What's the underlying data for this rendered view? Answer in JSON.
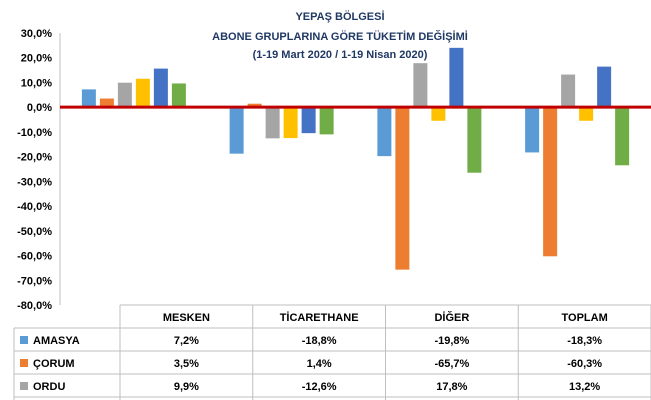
{
  "chart_data": {
    "type": "bar",
    "title_lines": [
      "YEPAŞ BÖLGESİ",
      "ABONE GRUPLARINA GÖRE TÜKETİM DEĞİŞİMİ",
      "(1-19 Mart 2020 / 1-19 Nisan 2020)"
    ],
    "categories": [
      "MESKEN",
      "TİCARETHANE",
      "DİĞER",
      "TOPLAM"
    ],
    "ylim": [
      -80,
      30
    ],
    "yticks": [
      "30,0%",
      "20,0%",
      "10,0%",
      "0,0%",
      "-10,0%",
      "-20,0%",
      "-30,0%",
      "-40,0%",
      "-50,0%",
      "-60,0%",
      "-70,0%",
      "-80,0%"
    ],
    "series": [
      {
        "name": "AMASYA",
        "color": "#5b9bd5",
        "values": [
          7.2,
          -18.8,
          -19.8,
          -18.3
        ],
        "labels": [
          "7,2%",
          "-18,8%",
          "-19,8%",
          "-18,3%"
        ]
      },
      {
        "name": "ÇORUM",
        "color": "#ed7d31",
        "values": [
          3.5,
          1.4,
          -65.7,
          -60.3
        ],
        "labels": [
          "3,5%",
          "1,4%",
          "-65,7%",
          "-60,3%"
        ]
      },
      {
        "name": "ORDU",
        "color": "#a5a5a5",
        "values": [
          9.9,
          -12.6,
          17.8,
          13.2
        ],
        "labels": [
          "9,9%",
          "-12,6%",
          "17,8%",
          "13,2%"
        ]
      },
      {
        "color": "#ffc000",
        "values": [
          11.5,
          -12.5,
          -5.5,
          -5.5
        ]
      },
      {
        "color": "#4472c4",
        "values": [
          15.6,
          -10.5,
          24.0,
          16.4
        ]
      },
      {
        "color": "#70ad47",
        "values": [
          9.6,
          -11.0,
          -26.5,
          -23.5
        ]
      }
    ],
    "zero_line_color": "#c00000",
    "grid": false,
    "legend": "data-table"
  }
}
